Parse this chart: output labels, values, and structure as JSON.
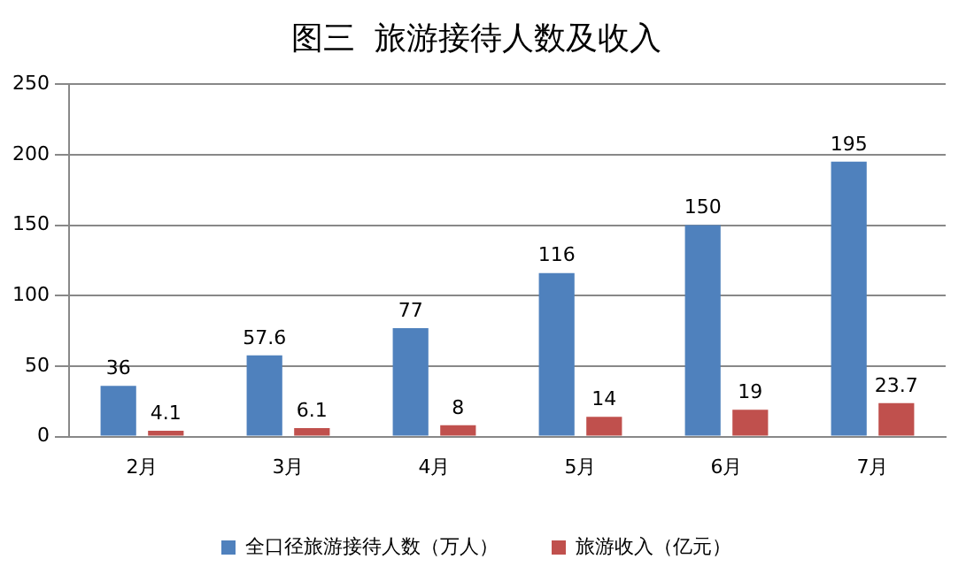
{
  "chart_data": {
    "type": "bar",
    "title": "图三  旅游接待人数及收入",
    "categories": [
      "2月",
      "3月",
      "4月",
      "5月",
      "6月",
      "7月"
    ],
    "series": [
      {
        "name": "全口径旅游接待人数（万人）",
        "color": "#4f81bd",
        "values": [
          36,
          57.6,
          77,
          116,
          150,
          195
        ]
      },
      {
        "name": "旅游收入（亿元）",
        "color": "#c0504d",
        "values": [
          4.1,
          6.1,
          8,
          14,
          19,
          23.7
        ]
      }
    ],
    "ylim": [
      0,
      250
    ],
    "yticks": [
      0,
      50,
      100,
      150,
      200,
      250
    ],
    "grid": "y",
    "legend": "bottom",
    "data_labels": true
  }
}
